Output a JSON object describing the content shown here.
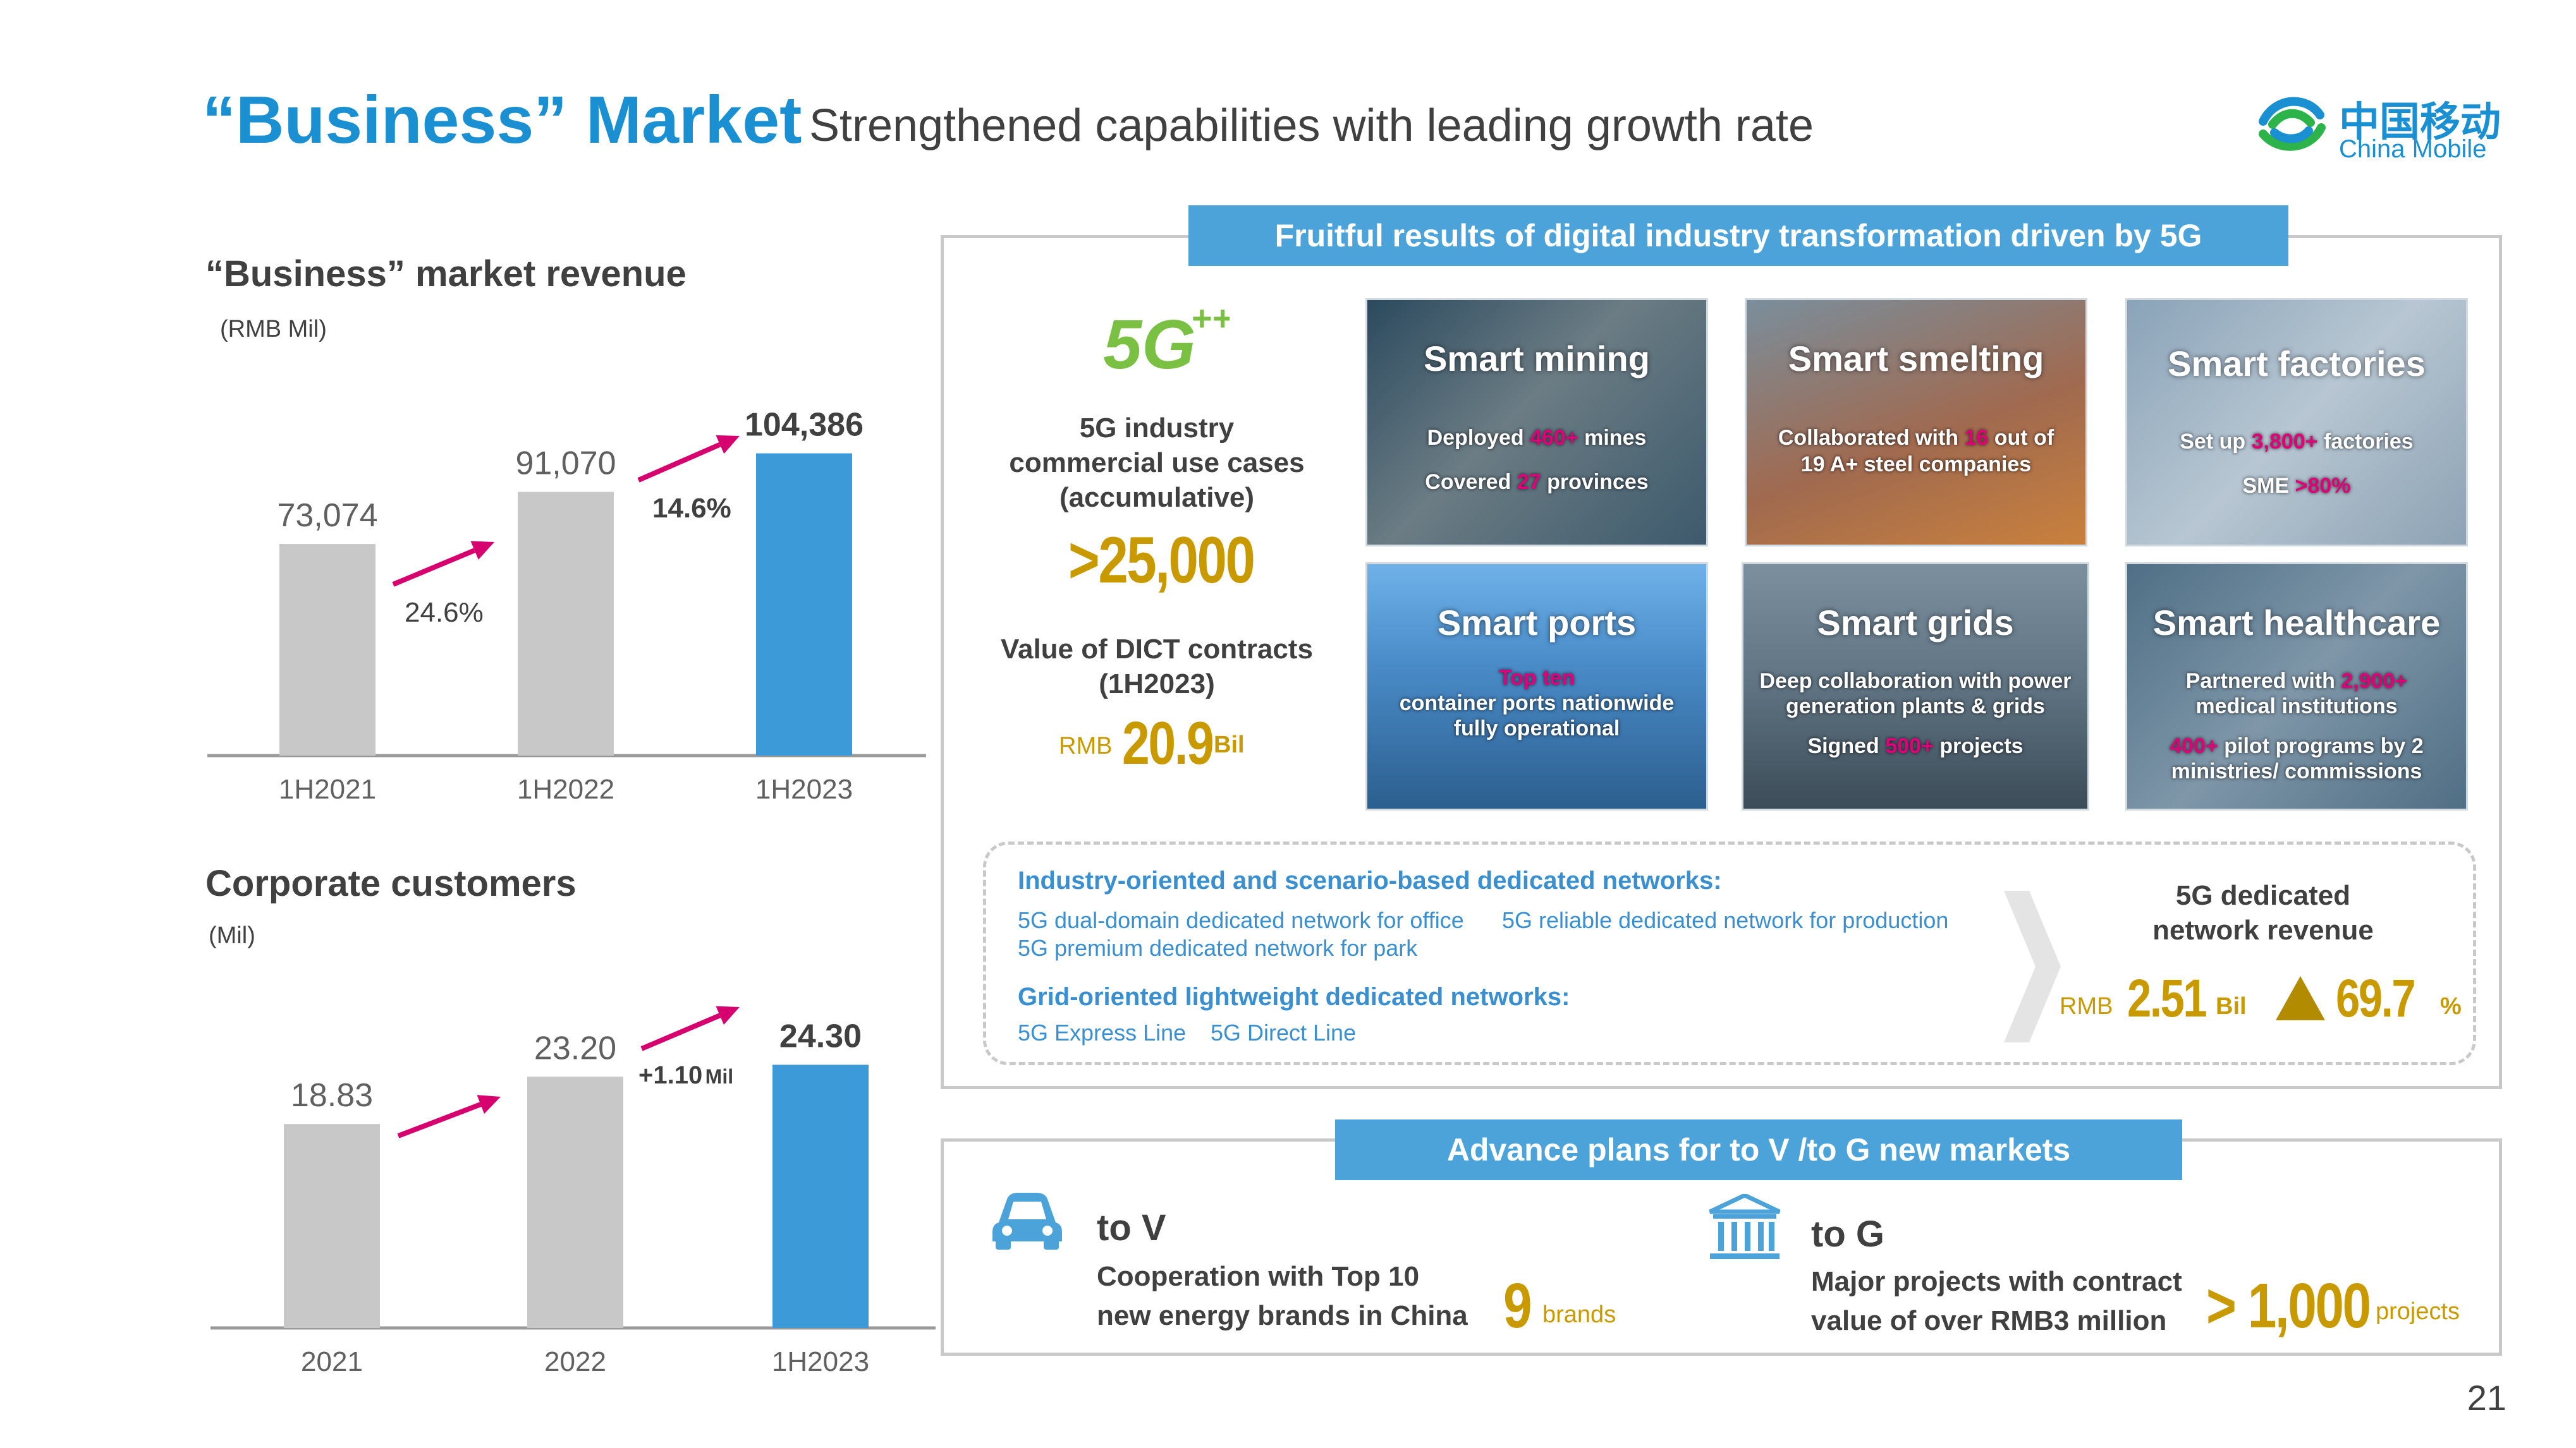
{
  "header": {
    "title": "“Business” Market",
    "subtitle": "Strengthened capabilities with leading growth rate",
    "logo_cn": "中国移动",
    "logo_en": "China Mobile"
  },
  "revenue_chart": {
    "title": "“Business” market revenue",
    "unit": "(RMB Mil)",
    "growth_labels": [
      "24.6%",
      "14.6%"
    ]
  },
  "customers_chart": {
    "title": "Corporate customers",
    "unit": "(Mil)",
    "growth_label_value": "+1.10",
    "growth_label_unit": "Mil"
  },
  "chart_data": [
    {
      "type": "bar",
      "title": "“Business” market revenue",
      "ylabel": "(RMB Mil)",
      "categories": [
        "1H2021",
        "1H2022",
        "1H2023"
      ],
      "values": [
        73074,
        91070,
        104386
      ],
      "labels": [
        "73,074",
        "91,070",
        "104,386"
      ],
      "colors": [
        "#c8c8c8",
        "#c8c8c8",
        "#3d9ad9"
      ],
      "ylim": [
        0,
        120000
      ]
    },
    {
      "type": "bar",
      "title": "Corporate customers",
      "ylabel": "(Mil)",
      "categories": [
        "2021",
        "2022",
        "1H2023"
      ],
      "values": [
        18.83,
        23.2,
        24.3
      ],
      "labels": [
        "18.83",
        "23.20",
        "24.30"
      ],
      "colors": [
        "#c8c8c8",
        "#c8c8c8",
        "#3d9ad9"
      ],
      "ylim": [
        0,
        28
      ]
    }
  ],
  "digital": {
    "banner": "Fruitful results of digital industry transformation driven by 5G",
    "use_cases_label": [
      "5G industry",
      "commercial use cases",
      "(accumulative)"
    ],
    "use_cases_value": ">25,000",
    "dict_label": [
      "Value of DICT contracts",
      "(1H2023)"
    ],
    "dict_prefix": "RMB",
    "dict_value": "20.9",
    "dict_unit": "Bil",
    "tiles": {
      "mining": {
        "title": "Smart mining",
        "l1a": "Deployed ",
        "l1h": "460+",
        "l1b": " mines",
        "l2a": "Covered ",
        "l2h": "27",
        "l2b": " provinces"
      },
      "smelting": {
        "title": "Smart smelting",
        "l1a": "Collaborated with ",
        "l1h": "16",
        "l1b": " out of",
        "l2": "19 A+ steel companies"
      },
      "factories": {
        "title": "Smart factories",
        "l1a": "Set up ",
        "l1h": "3,800+",
        "l1b": " factories",
        "l2a": "SME ",
        "l2h": ">80%"
      },
      "ports": {
        "title": "Smart ports",
        "l1h": "Top ten",
        "l2": "container ports nationwide",
        "l3": "fully operational"
      },
      "grids": {
        "title": "Smart grids",
        "l1": "Deep collaboration with power",
        "l2": "generation plants & grids",
        "l3a": "Signed ",
        "l3h": "500+",
        "l3b": " projects"
      },
      "healthcare": {
        "title": "Smart healthcare",
        "l1a": "Partnered with ",
        "l1h": "2,900+",
        "l2": "medical institutions",
        "l3h": "400+",
        "l3a": " pilot programs by 2",
        "l4": "ministries/ commissions"
      }
    },
    "networks": {
      "head1": "Industry-oriented and scenario-based dedicated networks:",
      "items1": [
        "5G dual-domain dedicated network for office",
        "5G reliable dedicated network for production",
        "5G premium dedicated network for park"
      ],
      "head2": "Grid-oriented lightweight dedicated networks:",
      "items2": [
        "5G Express Line",
        "5G Direct Line"
      ],
      "revenue_label": [
        "5G dedicated",
        "network revenue"
      ],
      "revenue_prefix": "RMB",
      "revenue_value": "2.51",
      "revenue_unit": "Bil",
      "growth_value": "69.7",
      "growth_unit": "%"
    }
  },
  "markets": {
    "banner": "Advance plans for to V /to G new markets",
    "tov": {
      "label": "to V",
      "desc": [
        "Cooperation with Top 10",
        "new energy brands in China"
      ],
      "value": "9",
      "unit": "brands"
    },
    "tog": {
      "label": "to G",
      "desc": [
        "Major projects with contract",
        "value of over RMB3 million"
      ],
      "value": "> 1,000",
      "unit": "projects"
    }
  },
  "page_number": "21",
  "colors": {
    "accent": "#1a8fd1",
    "bar_grey": "#c8c8c8",
    "bar_blue": "#3d9ad9",
    "arrow": "#d6006e",
    "gold": "#c99a00",
    "banner": "#4ba3d9"
  }
}
